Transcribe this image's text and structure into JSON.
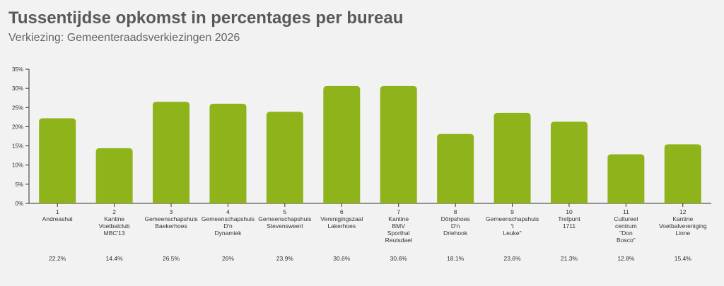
{
  "header": {
    "title": "Tussentijdse opkomst in percentages per bureau",
    "subtitle": "Verkiezing: Gemeenteraadsverkiezingen 2026"
  },
  "colors": {
    "background": "#f2f2f2",
    "bar": "#8fb31a",
    "text": "#333333",
    "axis": "#333333"
  },
  "chart_data": {
    "type": "bar",
    "ylim": [
      0,
      35
    ],
    "yticks": [
      "0%",
      "5%",
      "10%",
      "15%",
      "20%",
      "25%",
      "30%",
      "35%"
    ],
    "grid": false,
    "categories": [
      [
        "1",
        "Andreashal"
      ],
      [
        "2",
        "Kantine",
        "Voetbalclub",
        "MBC'13"
      ],
      [
        "3",
        "Gemeenschapshuis",
        "Baekerhoes"
      ],
      [
        "4",
        "Gemeenschapshuis",
        "D'n",
        "Dynamiek"
      ],
      [
        "5",
        "Gemeenschapshuis",
        "Stevensweert"
      ],
      [
        "6",
        "Verenigingszaal",
        "Lakerhoes"
      ],
      [
        "7",
        "Kantine",
        "BMV",
        "Sporthal",
        "Reutsdael"
      ],
      [
        "8",
        "Dörpshoes",
        "D'n",
        "Driehook"
      ],
      [
        "9",
        "Gemeenschapshuis",
        "'t",
        "Leuke\""
      ],
      [
        "10",
        "Trefpunt",
        "1711"
      ],
      [
        "11",
        "Cultureel",
        "centrum",
        "\"Don",
        "Bosco\""
      ],
      [
        "12",
        "Kantine",
        "Voetbalvereniging",
        "Linne"
      ]
    ],
    "values": [
      22.2,
      14.4,
      26.5,
      26,
      23.9,
      30.6,
      30.6,
      18.1,
      23.6,
      21.3,
      12.8,
      15.4
    ],
    "value_labels": [
      "22.2%",
      "14.4%",
      "26.5%",
      "26%",
      "23.9%",
      "30.6%",
      "30.6%",
      "18.1%",
      "23.6%",
      "21.3%",
      "12.8%",
      "15.4%"
    ]
  }
}
